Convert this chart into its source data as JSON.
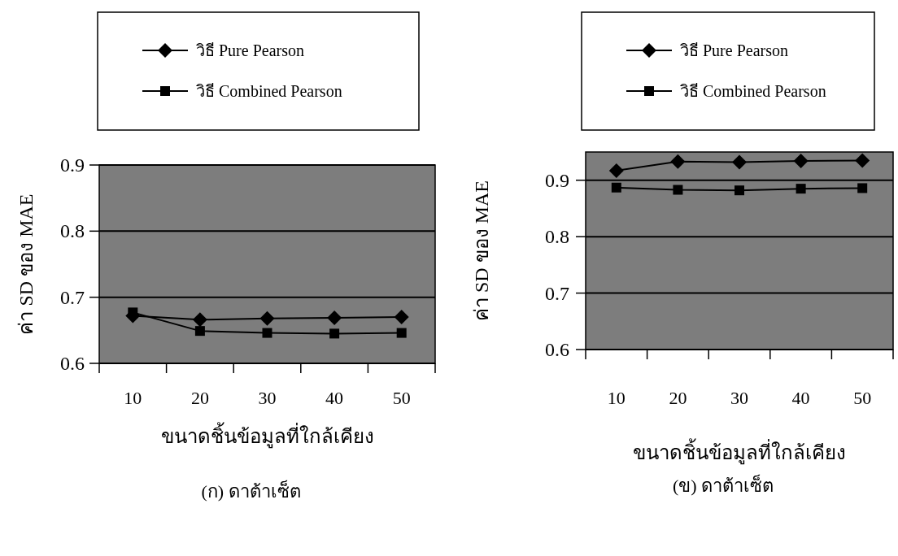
{
  "chart_data": [
    {
      "type": "line",
      "xlabel": "ขนาดชิ้นข้อมูลที่ใกล้เคียง",
      "ylabel": "ค่า SD ของ MAE",
      "categories": [
        "10",
        "20",
        "30",
        "40",
        "50"
      ],
      "ylim": [
        0.6,
        0.9
      ],
      "yticks": [
        0.6,
        0.7,
        0.8,
        0.9
      ],
      "grid": "y",
      "legend": "top",
      "series": [
        {
          "name": "วิธี Pure Pearson",
          "color": "#000000",
          "marker": "diamond",
          "values": [
            0.672,
            0.666,
            0.668,
            0.669,
            0.67
          ]
        },
        {
          "name": "วิธี Combined Pearson",
          "color": "#000000",
          "marker": "square",
          "values": [
            0.677,
            0.649,
            0.646,
            0.645,
            0.646
          ]
        }
      ],
      "annotations": [
        "(ก) ดาต้าเซ็ต"
      ]
    },
    {
      "type": "line",
      "xlabel": "ขนาดชิ้นข้อมูลที่ใกล้เคียง",
      "ylabel": "ค่า SD ของ MAE",
      "categories": [
        "10",
        "20",
        "30",
        "40",
        "50"
      ],
      "ylim": [
        0.6,
        0.95
      ],
      "yticks": [
        0.6,
        0.7,
        0.8,
        0.9
      ],
      "grid": "y",
      "legend": "top",
      "series": [
        {
          "name": "วิธี Pure Pearson",
          "color": "#000000",
          "marker": "diamond",
          "values": [
            0.917,
            0.933,
            0.932,
            0.934,
            0.935
          ]
        },
        {
          "name": "วิธี Combined Pearson",
          "color": "#000000",
          "marker": "square",
          "values": [
            0.887,
            0.883,
            0.882,
            0.885,
            0.886
          ]
        }
      ],
      "annotations": [
        "(ข) ดาต้าเซ็ต"
      ]
    }
  ]
}
